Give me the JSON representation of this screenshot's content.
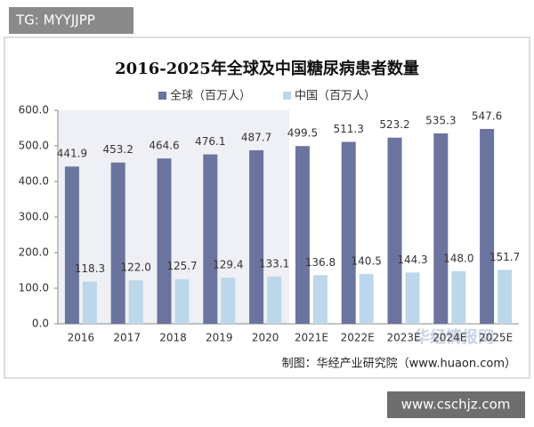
{
  "chart_data": {
    "type": "bar",
    "title": "2016-2025年全球及中国糖尿病患者数量",
    "categories": [
      "2016",
      "2017",
      "2018",
      "2019",
      "2020",
      "2021E",
      "2022E",
      "2023E",
      "2024E",
      "2025E"
    ],
    "series": [
      {
        "name": "全球（百万人）",
        "color": "#6b739f",
        "values": [
          441.9,
          453.2,
          464.6,
          476.1,
          487.7,
          499.5,
          511.3,
          523.2,
          535.3,
          547.6
        ],
        "value_labels": [
          "441.9",
          "453.2",
          "464.6",
          "476.1",
          "487.7",
          "499.5",
          "511.3",
          "523.2",
          "535.3",
          "547.6"
        ]
      },
      {
        "name": "中国（百万人）",
        "color": "#bdd7ea",
        "values": [
          118.3,
          122.0,
          125.7,
          129.4,
          133.1,
          136.8,
          140.5,
          144.3,
          148.0,
          151.7
        ],
        "value_labels": [
          "118.3",
          "122.0",
          "125.7",
          "129.4",
          "133.1",
          "136.8",
          "140.5",
          "144.3",
          "148.0",
          "151.7"
        ]
      }
    ],
    "ylim": [
      0,
      600
    ],
    "yticks": [
      {
        "value": 0,
        "label": "0.0"
      },
      {
        "value": 100,
        "label": "100.0"
      },
      {
        "value": 200,
        "label": "200.0"
      },
      {
        "value": 300,
        "label": "300.0"
      },
      {
        "value": 400,
        "label": "400.0"
      },
      {
        "value": 500,
        "label": "500.0"
      },
      {
        "value": 600,
        "label": "600.0"
      }
    ],
    "source": "制图：华经产业研究院（www.huaon.com）",
    "watermark_top": "TG: MYYJJPP",
    "watermark_bottom": "www.cschjz.com",
    "watermark_logo": "华经情报网"
  }
}
